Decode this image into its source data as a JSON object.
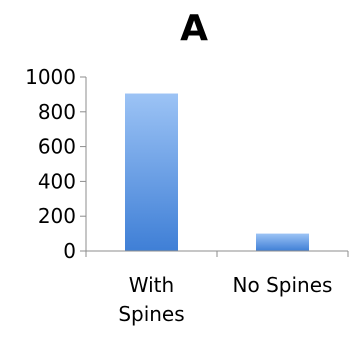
{
  "chart_data": {
    "type": "bar",
    "title": "A",
    "xlabel": "",
    "ylabel": "",
    "categories": [
      "With Spines",
      "No Spines"
    ],
    "category_lines": [
      [
        "With",
        "Spines"
      ],
      [
        "No Spines"
      ]
    ],
    "values": [
      905,
      100
    ],
    "ylim": [
      0,
      1000
    ],
    "yticks": [
      0,
      200,
      400,
      600,
      800,
      1000
    ],
    "grid": false,
    "legend": "none",
    "colors": {
      "bar_top": "#9cc3f5",
      "bar_bottom": "#3f7fd6",
      "axis": "#8c8c8c"
    }
  }
}
